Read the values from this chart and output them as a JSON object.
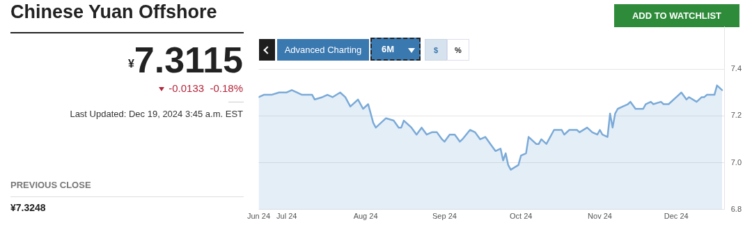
{
  "chart_data": {
    "type": "area",
    "title": "Chinese Yuan Offshore",
    "annotations": [
      "ADD TO WATCHLIST",
      "$^{¥}$7.3115",
      "-0.0133",
      "-0.18%",
      "Last Updated: Dec 19, 2024 3:45 a.m. EST",
      "PREVIOUS CLOSE",
      "¥7.3248",
      "Advanced Charting",
      "6M",
      "$",
      "%"
    ],
    "x": [
      "2024-06-20",
      "2024-06-22",
      "2024-06-25",
      "2024-06-28",
      "2024-07-01",
      "2024-07-03",
      "2024-07-05",
      "2024-07-07",
      "2024-07-10",
      "2024-07-11",
      "2024-07-12",
      "2024-07-15",
      "2024-07-17",
      "2024-07-19",
      "2024-07-22",
      "2024-07-24",
      "2024-07-26",
      "2024-07-29",
      "2024-07-31",
      "2024-08-02",
      "2024-08-04",
      "2024-08-05",
      "2024-08-07",
      "2024-08-09",
      "2024-08-12",
      "2024-08-14",
      "2024-08-15",
      "2024-08-16",
      "2024-08-19",
      "2024-08-21",
      "2024-08-23",
      "2024-08-25",
      "2024-08-27",
      "2024-08-29",
      "2024-08-31",
      "2024-09-01",
      "2024-09-03",
      "2024-09-05",
      "2024-09-07",
      "2024-09-08",
      "2024-09-11",
      "2024-09-13",
      "2024-09-15",
      "2024-09-17",
      "2024-09-19",
      "2024-09-21",
      "2024-09-23",
      "2024-09-24",
      "2024-09-25",
      "2024-09-26",
      "2024-09-27",
      "2024-09-30",
      "2024-10-01",
      "2024-10-03",
      "2024-10-04",
      "2024-10-07",
      "2024-10-08",
      "2024-10-09",
      "2024-10-11",
      "2024-10-14",
      "2024-10-17",
      "2024-10-18",
      "2024-10-20",
      "2024-10-23",
      "2024-10-24",
      "2024-10-27",
      "2024-10-29",
      "2024-10-31",
      "2024-11-01",
      "2024-11-02",
      "2024-11-04",
      "2024-11-05",
      "2024-11-06",
      "2024-11-07",
      "2024-11-08",
      "2024-11-10",
      "2024-11-12",
      "2024-11-13",
      "2024-11-15",
      "2024-11-18",
      "2024-11-19",
      "2024-11-21",
      "2024-11-22",
      "2024-11-25",
      "2024-11-26",
      "2024-11-28",
      "2024-12-02",
      "2024-12-03",
      "2024-12-05",
      "2024-12-06",
      "2024-12-09",
      "2024-12-11",
      "2024-12-12",
      "2024-12-13",
      "2024-12-16",
      "2024-12-17",
      "2024-12-19"
    ],
    "values": [
      7.28,
      7.29,
      7.29,
      7.3,
      7.3,
      7.31,
      7.3,
      7.29,
      7.29,
      7.29,
      7.27,
      7.28,
      7.29,
      7.28,
      7.3,
      7.28,
      7.24,
      7.27,
      7.23,
      7.25,
      7.17,
      7.15,
      7.17,
      7.19,
      7.18,
      7.15,
      7.15,
      7.18,
      7.15,
      7.12,
      7.15,
      7.12,
      7.13,
      7.13,
      7.1,
      7.09,
      7.12,
      7.12,
      7.09,
      7.1,
      7.14,
      7.13,
      7.1,
      7.11,
      7.08,
      7.05,
      7.06,
      7.01,
      7.04,
      6.99,
      6.97,
      6.99,
      7.03,
      7.04,
      7.11,
      7.08,
      7.08,
      7.1,
      7.08,
      7.14,
      7.14,
      7.12,
      7.14,
      7.14,
      7.13,
      7.15,
      7.13,
      7.12,
      7.14,
      7.12,
      7.11,
      7.21,
      7.15,
      7.21,
      7.23,
      7.24,
      7.25,
      7.26,
      7.23,
      7.23,
      7.25,
      7.26,
      7.25,
      7.26,
      7.25,
      7.25,
      7.29,
      7.3,
      7.27,
      7.28,
      7.26,
      7.28,
      7.28,
      7.29,
      7.29,
      7.33,
      7.31
    ],
    "color": "#7aaad8",
    "marker": "none",
    "grid": "y",
    "legend": false,
    "xlim": [
      "2024-06-20",
      "2024-12-20"
    ],
    "xticks": [
      {
        "value": "2024-06-20",
        "label": "Jun 24"
      },
      {
        "value": "2024-07-01",
        "label": "Jul 24"
      },
      {
        "value": "2024-08-01",
        "label": "Aug 24"
      },
      {
        "value": "2024-09-01",
        "label": "Sep 24"
      },
      {
        "value": "2024-10-01",
        "label": "Oct 24"
      },
      {
        "value": "2024-11-01",
        "label": "Nov 24"
      },
      {
        "value": "2024-12-01",
        "label": "Dec 24"
      }
    ],
    "ylim": [
      6.8,
      7.58
    ],
    "yticks": [
      {
        "value": 6.8,
        "label": "6.8"
      },
      {
        "value": 7,
        "label": "7.0"
      },
      {
        "value": 7.2,
        "label": "7.2"
      },
      {
        "value": 7.4,
        "label": "7.4"
      }
    ]
  }
}
